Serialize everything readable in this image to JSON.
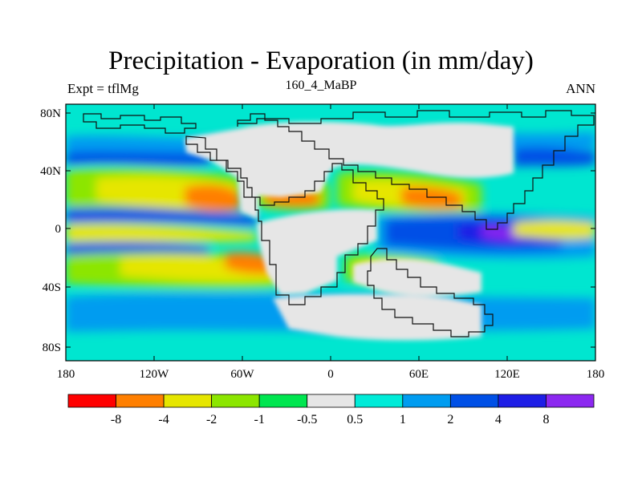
{
  "title": "Precipitation - Evaporation (in mm/day)",
  "subtitle": "160_4_MaBP",
  "left_label": "Expt = tflMg",
  "right_label": "ANN",
  "map": {
    "lat_ticks": [
      "80N",
      "40N",
      "0",
      "40S",
      "80S"
    ],
    "lon_ticks": [
      "180",
      "120W",
      "60W",
      "0",
      "60E",
      "120E",
      "180"
    ],
    "land_color": "#e6e6e6",
    "ocean_base_color": "#00e6d0"
  },
  "colorbar": {
    "colors": [
      "#ff0000",
      "#ff7f00",
      "#e6e600",
      "#8ce600",
      "#00e650",
      "#e6e6e6",
      "#00ebd8",
      "#009cf0",
      "#0050e6",
      "#1e1ee6",
      "#8c28f0"
    ],
    "labels": [
      "-8",
      "-4",
      "-2",
      "-1",
      "-0.5",
      "0.5",
      "1",
      "2",
      "4",
      "8"
    ]
  }
}
